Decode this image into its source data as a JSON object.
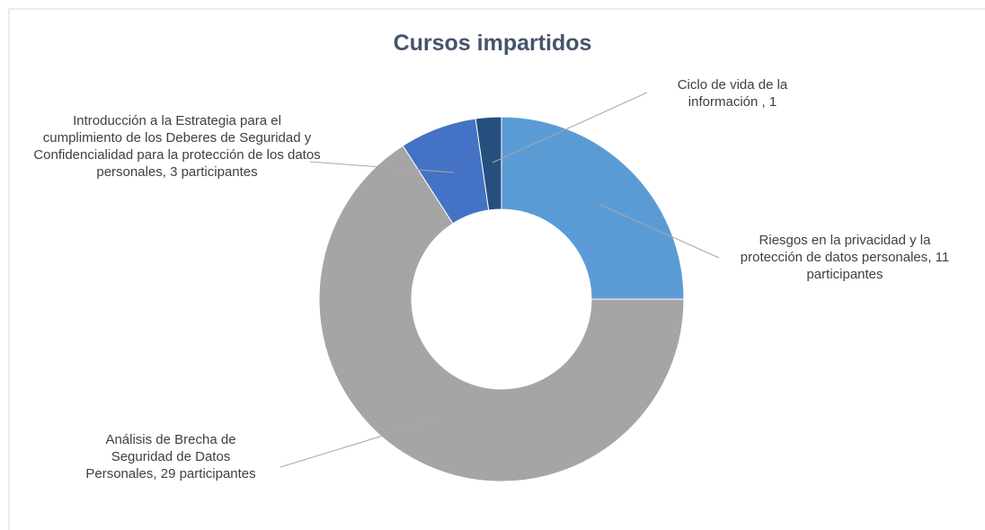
{
  "chart_data": {
    "type": "donut",
    "title": "Cursos impartidos",
    "values": [
      11,
      29,
      3,
      1
    ],
    "value_labels": [
      "Riesgos en la privacidad y la protección de datos personales, 11 participantes",
      "Análisis de Brecha de Seguridad de Datos Personales, 29 participantes",
      "Introducción a la Estrategia para el cumplimiento de los Deberes de Seguridad y Confidencialidad para la protección de los datos personales, 3 participantes",
      "Ciclo de vida de la información , 1"
    ],
    "colors": [
      "#5b9bd5",
      "#a5a5a5",
      "#4472c4",
      "#264f7e"
    ]
  }
}
